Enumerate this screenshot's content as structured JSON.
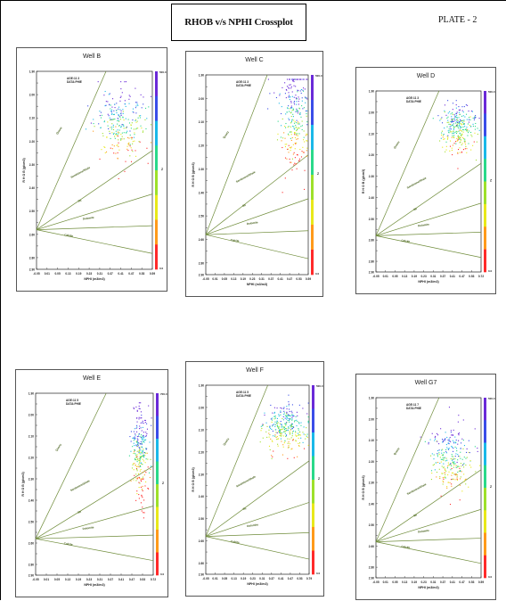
{
  "page": {
    "title": "RHOB v/s NPHI Crossplot",
    "plate": "PLATE - 2"
  },
  "chart_data": [
    {
      "type": "scatter",
      "title": "Well B",
      "inset_text": [
        "AGE:11 3",
        "DATA:PHIE"
      ],
      "xlabel": "NPHI (m3/m3)",
      "ylabel": "R H O B (g/cm3)",
      "xlim": [
        -0.05,
        0.59
      ],
      "ylim": [
        2.9,
        1.9
      ],
      "x_ticks": [
        "-0.05",
        "0.01",
        "0.05",
        "0.13",
        "0.19",
        "0.23",
        "0.31",
        "0.37",
        "0.41",
        "0.47",
        "0.53",
        "0.59"
      ],
      "y_ticks": [
        "1.90",
        "1.95",
        "2.00",
        "2.05",
        "2.10",
        "2.15",
        "2.20",
        "2.25",
        "2.30",
        "2.35",
        "2.40",
        "2.45",
        "2.50",
        "2.55",
        "2.60",
        "2.70",
        "2.80",
        "2.90"
      ],
      "lithology_labels": [
        "Quartz",
        "Sandstone/Shale",
        "Sh",
        "Dolomite",
        "Calcite"
      ],
      "colorbar_label": "Z",
      "colorbar_range": [
        "0.0",
        "500.0"
      ],
      "cluster": {
        "cx": 0.41,
        "cy": 2.17,
        "sx": 0.07,
        "sy": 0.09,
        "n": 260,
        "min_x": 0.0,
        "min_y": 1.95
      }
    },
    {
      "type": "scatter",
      "title": "Well C",
      "inset_text": [
        "AGE:11 3",
        "DATA:PHIE"
      ],
      "xlabel": "NPHI (m3/m3)",
      "ylabel": "R H O B (g/cm3)",
      "xlim": [
        -0.05,
        0.59
      ],
      "ylim": [
        2.9,
        1.9
      ],
      "x_ticks": [
        "-0.05",
        "0.01",
        "0.05",
        "0.13",
        "0.19",
        "0.23",
        "0.31",
        "0.37",
        "0.41",
        "0.47",
        "0.53",
        "0.59"
      ],
      "y_ticks": [
        "1.90",
        "1.95",
        "2.00",
        "2.05",
        "2.10",
        "2.15",
        "2.20",
        "2.25",
        "2.30",
        "2.35",
        "2.40",
        "2.45",
        "2.50",
        "2.55",
        "2.60",
        "2.70",
        "2.80",
        "2.90"
      ],
      "lithology_labels": [
        "Quartz",
        "Sandstone/Shale",
        "Sh",
        "Dolomite",
        "Calcite"
      ],
      "colorbar_label": "Z",
      "colorbar_range": [
        "0.0",
        "500.0"
      ],
      "cluster": {
        "cx": 0.5,
        "cy": 2.12,
        "sx": 0.05,
        "sy": 0.13,
        "n": 260,
        "min_x": 0.2,
        "min_y": 1.92
      }
    },
    {
      "type": "scatter",
      "title": "Well D",
      "inset_text": [
        "AGE:11 3",
        "DATA:PHIE"
      ],
      "xlabel": "NPHI (m3/m3)",
      "ylabel": "R H O B (g/cm3)",
      "xlim": [
        -0.05,
        0.72
      ],
      "ylim": [
        2.9,
        1.9
      ],
      "x_ticks": [
        "-0.05",
        "0.01",
        "0.05",
        "0.13",
        "0.19",
        "0.23",
        "0.31",
        "0.37",
        "0.41",
        "0.47",
        "0.53",
        "0.72"
      ],
      "y_ticks": [
        "1.90",
        "1.95",
        "2.00",
        "2.05",
        "2.10",
        "2.15",
        "2.20",
        "2.25",
        "2.30",
        "2.35",
        "2.40",
        "2.45",
        "2.50",
        "2.55",
        "2.60",
        "2.70",
        "2.80",
        "2.90"
      ],
      "lithology_labels": [
        "Quartz",
        "Sandstone/Shale",
        "Sh",
        "Dolomite",
        "Calcite"
      ],
      "colorbar_label": "Z",
      "colorbar_range": [
        "0.0",
        "500.0"
      ],
      "cluster": {
        "cx": 0.55,
        "cy": 2.1,
        "sx": 0.07,
        "sy": 0.07,
        "n": 280,
        "min_x": 0.3,
        "min_y": 1.95
      }
    },
    {
      "type": "scatter",
      "title": "Well E",
      "inset_text": [
        "AGE:11 5",
        "DATA:PHIE"
      ],
      "xlabel": "NPHI (m3/m3)",
      "ylabel": "R H O B (g/cm3)",
      "xlim": [
        -0.05,
        0.72
      ],
      "ylim": [
        2.9,
        1.9
      ],
      "x_ticks": [
        "-0.05",
        "0.01",
        "0.05",
        "0.13",
        "0.19",
        "0.23",
        "0.31",
        "0.37",
        "0.41",
        "0.47",
        "0.53",
        "0.72"
      ],
      "y_ticks": [
        "1.90",
        "1.95",
        "2.00",
        "2.05",
        "2.10",
        "2.15",
        "2.20",
        "2.25",
        "2.30",
        "2.35",
        "2.40",
        "2.45",
        "2.50",
        "2.55",
        "2.60",
        "2.70",
        "2.80",
        "2.90"
      ],
      "lithology_labels": [
        "Quartz",
        "Sandstone/Shale",
        "Sh",
        "Dolomite",
        "Calcite"
      ],
      "colorbar_label": "Z",
      "colorbar_range": [
        "0.0",
        "700.0"
      ],
      "cluster": {
        "cx": 0.63,
        "cy": 2.22,
        "sx": 0.03,
        "sy": 0.13,
        "n": 260,
        "min_x": 0.4,
        "min_y": 1.95
      }
    },
    {
      "type": "scatter",
      "title": "Well F",
      "inset_text": [
        "AGE:11 5",
        "DATA:PHIE"
      ],
      "xlabel": "NPHI (m3/m3)",
      "ylabel": "R H O B (g/cm3)",
      "xlim": [
        -0.05,
        0.79
      ],
      "ylim": [
        2.9,
        1.9
      ],
      "x_ticks": [
        "-0.05",
        "0.01",
        "0.05",
        "0.13",
        "0.19",
        "0.23",
        "0.31",
        "0.37",
        "0.41",
        "0.47",
        "0.53",
        "0.79"
      ],
      "y_ticks": [
        "1.90",
        "1.95",
        "2.00",
        "2.05",
        "2.10",
        "2.15",
        "2.20",
        "2.25",
        "2.30",
        "2.35",
        "2.40",
        "2.45",
        "2.50",
        "2.55",
        "2.60",
        "2.70",
        "2.80",
        "2.90"
      ],
      "lithology_labels": [
        "Quartz",
        "Sandstone/Shale",
        "Sh",
        "Dolomite",
        "Calcite"
      ],
      "colorbar_label": "Z",
      "colorbar_range": [
        "0.0",
        "500.0"
      ],
      "cluster": {
        "cx": 0.6,
        "cy": 2.12,
        "sx": 0.09,
        "sy": 0.06,
        "n": 300,
        "min_x": 0.3,
        "min_y": 1.95
      }
    },
    {
      "type": "scatter",
      "title": "Well G7",
      "inset_text": [
        "AGE:11 7",
        "DATA:PHIE"
      ],
      "xlabel": "NPHI (m3/m3)",
      "ylabel": "R H O B (g/cm3)",
      "xlim": [
        -0.05,
        0.59
      ],
      "ylim": [
        2.9,
        1.9
      ],
      "x_ticks": [
        "-0.05",
        "0.01",
        "0.05",
        "0.13",
        "0.19",
        "0.23",
        "0.31",
        "0.37",
        "0.41",
        "0.47",
        "0.53",
        "0.59"
      ],
      "y_ticks": [
        "1.90",
        "1.95",
        "2.00",
        "2.05",
        "2.10",
        "2.15",
        "2.20",
        "2.25",
        "2.30",
        "2.35",
        "2.40",
        "2.45",
        "2.50",
        "2.55",
        "2.60",
        "2.70",
        "2.80",
        "2.90"
      ],
      "lithology_labels": [
        "Quartz",
        "Sandstone/Shale",
        "Sh",
        "Dolomite",
        "Calcite"
      ],
      "colorbar_label": "Z",
      "colorbar_range": [
        "0.0",
        "500.0"
      ],
      "cluster": {
        "cx": 0.4,
        "cy": 2.24,
        "sx": 0.06,
        "sy": 0.09,
        "n": 260,
        "min_x": 0.1,
        "min_y": 1.95
      }
    }
  ],
  "colors": {
    "trend_line": "#6f8c3a",
    "lith_label": "#3f5a12",
    "colorbar": [
      "#ff2a2a",
      "#ff9a1a",
      "#e8e81a",
      "#9ee02a",
      "#2ad98a",
      "#1ab8e8",
      "#3a4de8",
      "#6a2ad8"
    ]
  }
}
